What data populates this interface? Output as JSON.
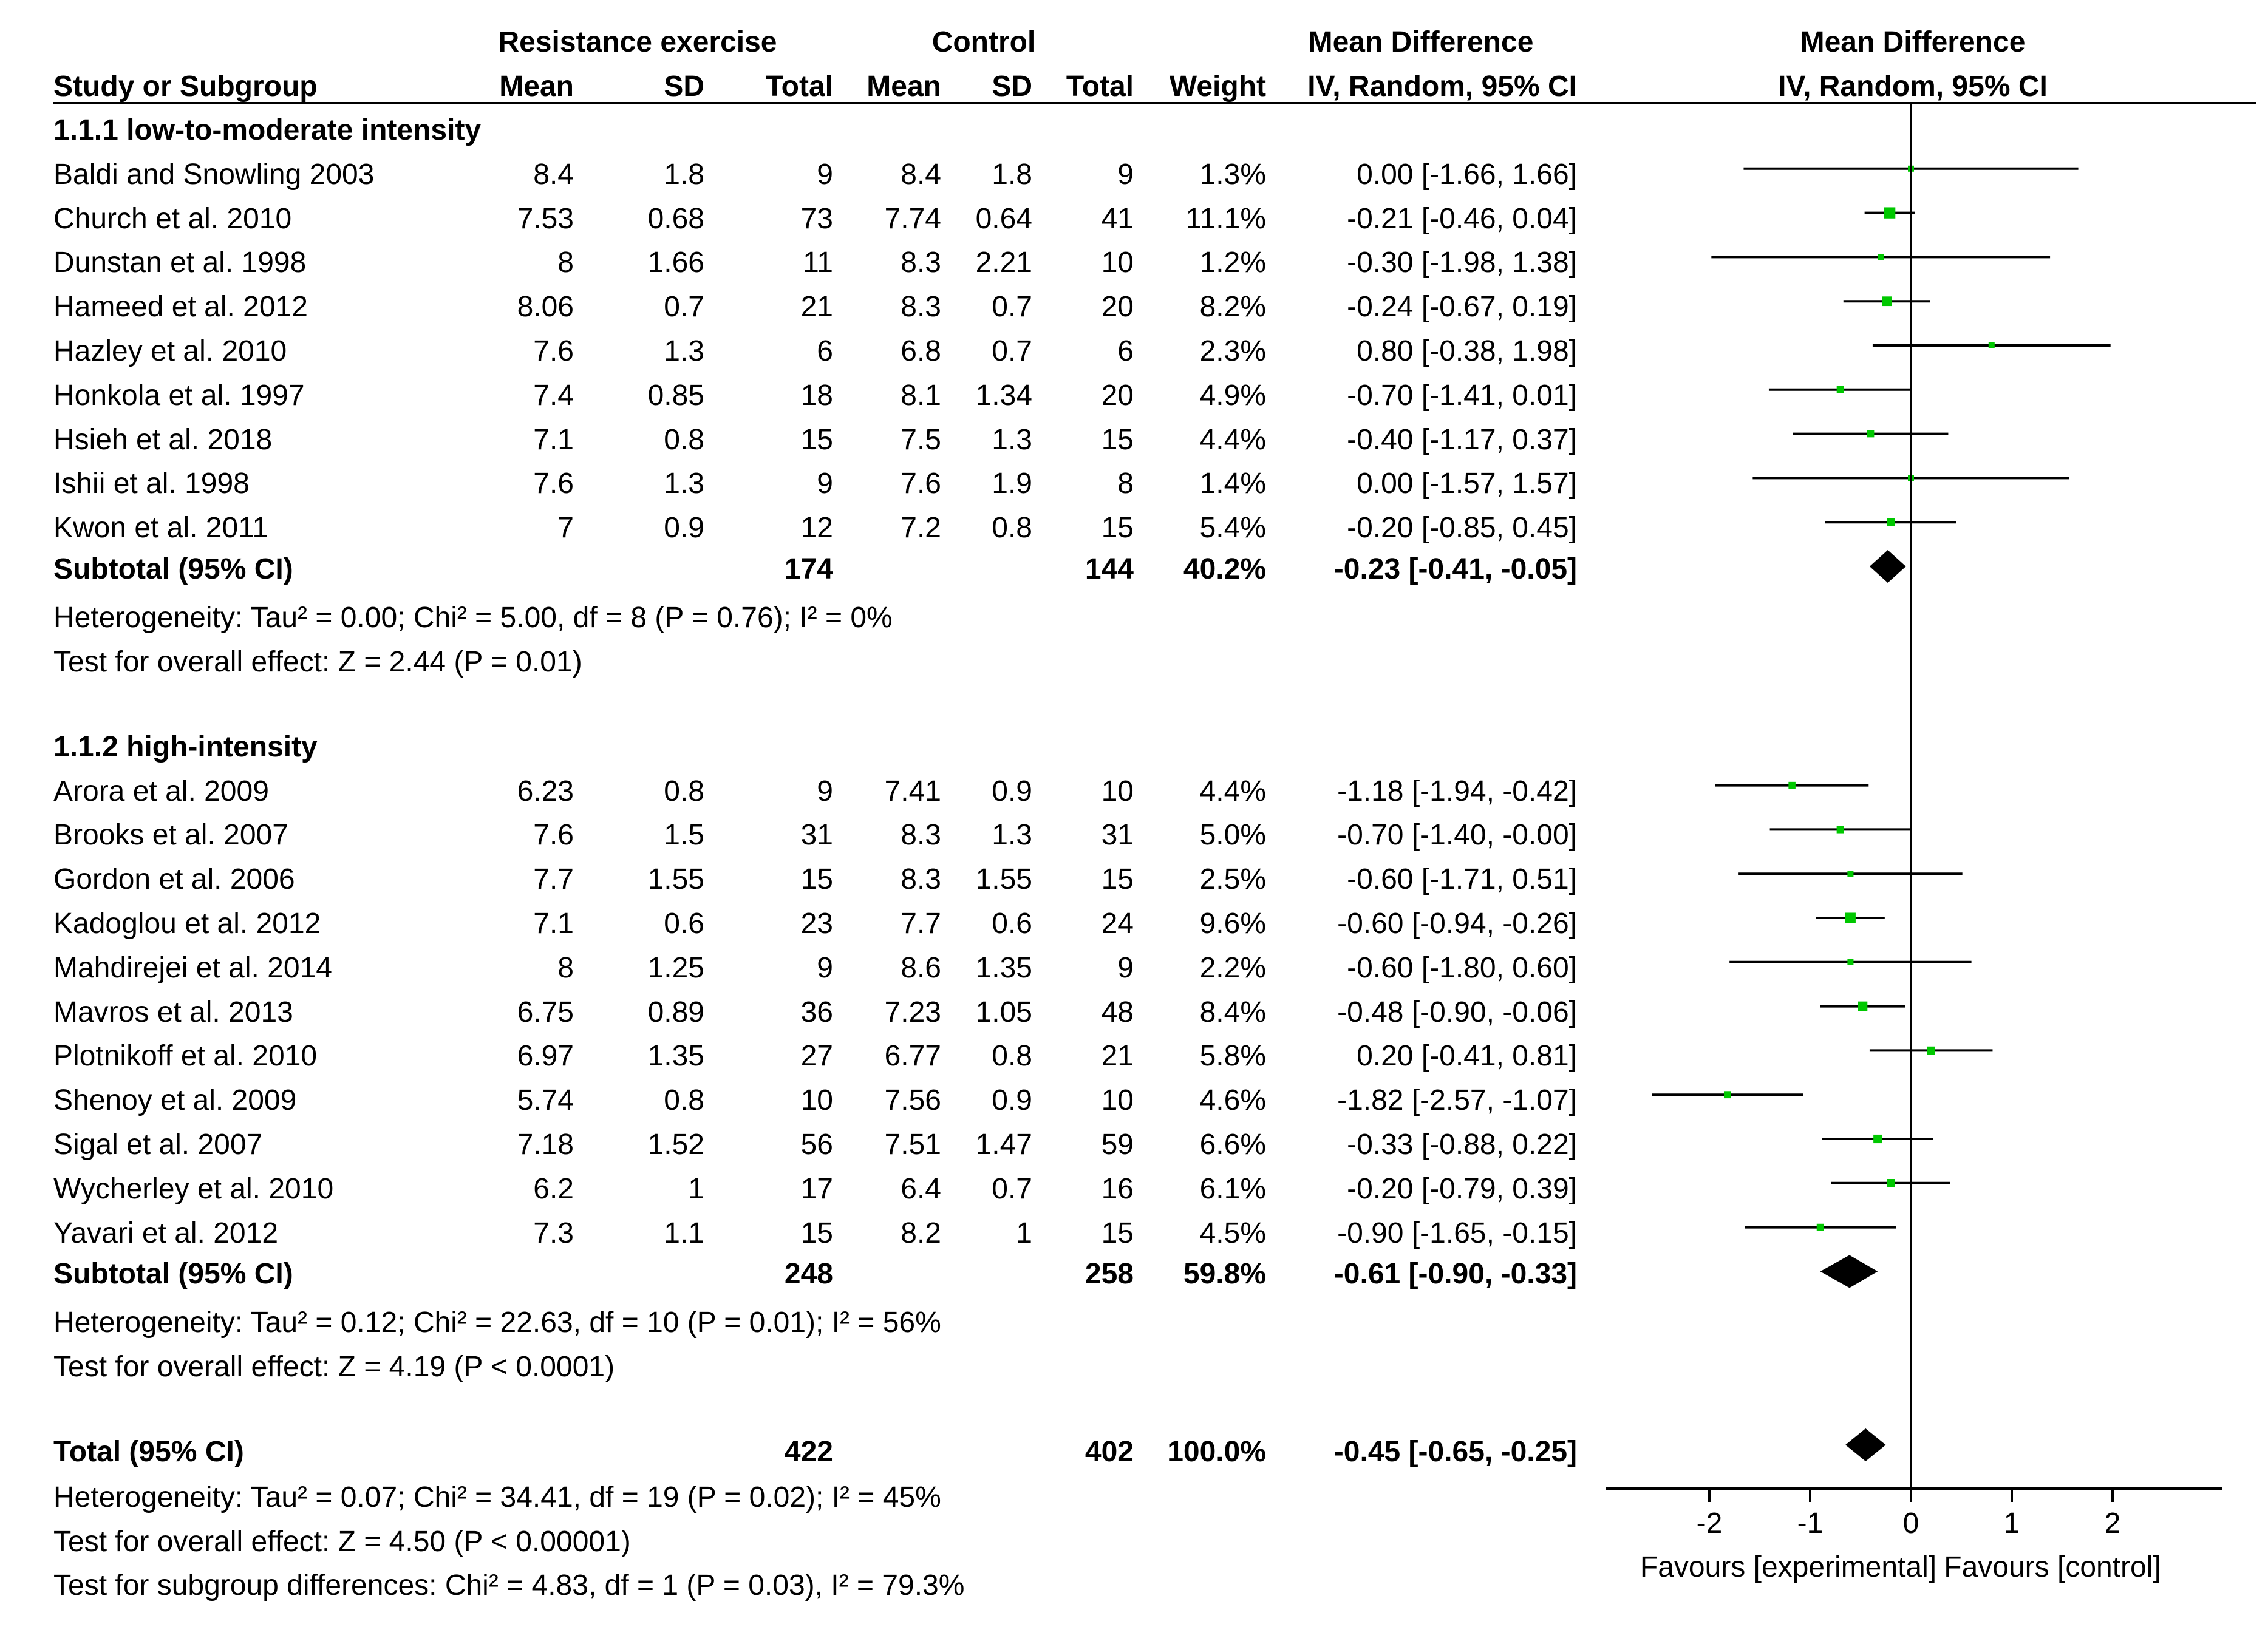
{
  "header": {
    "group_exp": "Resistance exercise",
    "group_ctrl": "Control",
    "md_title_1": "Mean Difference",
    "md_title_2": "Mean Difference",
    "study_col": "Study or Subgroup",
    "mean": "Mean",
    "sd": "SD",
    "total": "Total",
    "weight": "Weight",
    "ci_col": "IV, Random, 95% CI",
    "plot_sub": "IV, Random, 95% CI"
  },
  "colors": {
    "marker": "#00c800",
    "line": "#000000",
    "text": "#000000"
  },
  "groups": [
    {
      "title": "1.1.1 low-to-moderate intensity",
      "studies": [
        {
          "name": "Baldi and Snowling 2003",
          "e_mean": "8.4",
          "e_sd": "1.8",
          "e_total": "9",
          "c_mean": "8.4",
          "c_sd": "1.8",
          "c_total": "9",
          "weight": "1.3%",
          "ci": "0.00 [-1.66, 1.66]",
          "md": 0.0,
          "lo": -1.66,
          "hi": 1.66
        },
        {
          "name": "Church et al. 2010",
          "e_mean": "7.53",
          "e_sd": "0.68",
          "e_total": "73",
          "c_mean": "7.74",
          "c_sd": "0.64",
          "c_total": "41",
          "weight": "11.1%",
          "ci": "-0.21 [-0.46, 0.04]",
          "md": -0.21,
          "lo": -0.46,
          "hi": 0.04
        },
        {
          "name": "Dunstan et al. 1998",
          "e_mean": "8",
          "e_sd": "1.66",
          "e_total": "11",
          "c_mean": "8.3",
          "c_sd": "2.21",
          "c_total": "10",
          "weight": "1.2%",
          "ci": "-0.30 [-1.98, 1.38]",
          "md": -0.3,
          "lo": -1.98,
          "hi": 1.38
        },
        {
          "name": "Hameed et al. 2012",
          "e_mean": "8.06",
          "e_sd": "0.7",
          "e_total": "21",
          "c_mean": "8.3",
          "c_sd": "0.7",
          "c_total": "20",
          "weight": "8.2%",
          "ci": "-0.24 [-0.67, 0.19]",
          "md": -0.24,
          "lo": -0.67,
          "hi": 0.19
        },
        {
          "name": "Hazley et al. 2010",
          "e_mean": "7.6",
          "e_sd": "1.3",
          "e_total": "6",
          "c_mean": "6.8",
          "c_sd": "0.7",
          "c_total": "6",
          "weight": "2.3%",
          "ci": "0.80 [-0.38, 1.98]",
          "md": 0.8,
          "lo": -0.38,
          "hi": 1.98
        },
        {
          "name": "Honkola et al. 1997",
          "e_mean": "7.4",
          "e_sd": "0.85",
          "e_total": "18",
          "c_mean": "8.1",
          "c_sd": "1.34",
          "c_total": "20",
          "weight": "4.9%",
          "ci": "-0.70 [-1.41, 0.01]",
          "md": -0.7,
          "lo": -1.41,
          "hi": 0.01
        },
        {
          "name": "Hsieh et al. 2018",
          "e_mean": "7.1",
          "e_sd": "0.8",
          "e_total": "15",
          "c_mean": "7.5",
          "c_sd": "1.3",
          "c_total": "15",
          "weight": "4.4%",
          "ci": "-0.40 [-1.17, 0.37]",
          "md": -0.4,
          "lo": -1.17,
          "hi": 0.37
        },
        {
          "name": "Ishii et al. 1998",
          "e_mean": "7.6",
          "e_sd": "1.3",
          "e_total": "9",
          "c_mean": "7.6",
          "c_sd": "1.9",
          "c_total": "8",
          "weight": "1.4%",
          "ci": "0.00 [-1.57, 1.57]",
          "md": 0.0,
          "lo": -1.57,
          "hi": 1.57
        },
        {
          "name": "Kwon et al. 2011",
          "e_mean": "7",
          "e_sd": "0.9",
          "e_total": "12",
          "c_mean": "7.2",
          "c_sd": "0.8",
          "c_total": "15",
          "weight": "5.4%",
          "ci": "-0.20 [-0.85, 0.45]",
          "md": -0.2,
          "lo": -0.85,
          "hi": 0.45
        }
      ],
      "subtotal": {
        "label": "Subtotal (95% CI)",
        "e_total": "174",
        "c_total": "144",
        "weight": "40.2%",
        "ci": "-0.23 [-0.41, -0.05]",
        "md": -0.23,
        "lo": -0.41,
        "hi": -0.05
      },
      "heterogeneity": "Heterogeneity: Tau² = 0.00; Chi² = 5.00, df = 8 (P = 0.76); I² = 0%",
      "overall": "Test for overall effect: Z = 2.44 (P = 0.01)"
    },
    {
      "title": "1.1.2 high-intensity",
      "studies": [
        {
          "name": "Arora et al. 2009",
          "e_mean": "6.23",
          "e_sd": "0.8",
          "e_total": "9",
          "c_mean": "7.41",
          "c_sd": "0.9",
          "c_total": "10",
          "weight": "4.4%",
          "ci": "-1.18 [-1.94, -0.42]",
          "md": -1.18,
          "lo": -1.94,
          "hi": -0.42
        },
        {
          "name": "Brooks et al. 2007",
          "e_mean": "7.6",
          "e_sd": "1.5",
          "e_total": "31",
          "c_mean": "8.3",
          "c_sd": "1.3",
          "c_total": "31",
          "weight": "5.0%",
          "ci": "-0.70 [-1.40, -0.00]",
          "md": -0.7,
          "lo": -1.4,
          "hi": 0.0
        },
        {
          "name": "Gordon et al. 2006",
          "e_mean": "7.7",
          "e_sd": "1.55",
          "e_total": "15",
          "c_mean": "8.3",
          "c_sd": "1.55",
          "c_total": "15",
          "weight": "2.5%",
          "ci": "-0.60 [-1.71, 0.51]",
          "md": -0.6,
          "lo": -1.71,
          "hi": 0.51
        },
        {
          "name": "Kadoglou et al. 2012",
          "e_mean": "7.1",
          "e_sd": "0.6",
          "e_total": "23",
          "c_mean": "7.7",
          "c_sd": "0.6",
          "c_total": "24",
          "weight": "9.6%",
          "ci": "-0.60 [-0.94, -0.26]",
          "md": -0.6,
          "lo": -0.94,
          "hi": -0.26
        },
        {
          "name": "Mahdirejei et al. 2014",
          "e_mean": "8",
          "e_sd": "1.25",
          "e_total": "9",
          "c_mean": "8.6",
          "c_sd": "1.35",
          "c_total": "9",
          "weight": "2.2%",
          "ci": "-0.60 [-1.80, 0.60]",
          "md": -0.6,
          "lo": -1.8,
          "hi": 0.6
        },
        {
          "name": "Mavros et al. 2013",
          "e_mean": "6.75",
          "e_sd": "0.89",
          "e_total": "36",
          "c_mean": "7.23",
          "c_sd": "1.05",
          "c_total": "48",
          "weight": "8.4%",
          "ci": "-0.48 [-0.90, -0.06]",
          "md": -0.48,
          "lo": -0.9,
          "hi": -0.06
        },
        {
          "name": "Plotnikoff et al. 2010",
          "e_mean": "6.97",
          "e_sd": "1.35",
          "e_total": "27",
          "c_mean": "6.77",
          "c_sd": "0.8",
          "c_total": "21",
          "weight": "5.8%",
          "ci": "0.20 [-0.41, 0.81]",
          "md": 0.2,
          "lo": -0.41,
          "hi": 0.81
        },
        {
          "name": "Shenoy et al. 2009",
          "e_mean": "5.74",
          "e_sd": "0.8",
          "e_total": "10",
          "c_mean": "7.56",
          "c_sd": "0.9",
          "c_total": "10",
          "weight": "4.6%",
          "ci": "-1.82 [-2.57, -1.07]",
          "md": -1.82,
          "lo": -2.57,
          "hi": -1.07
        },
        {
          "name": "Sigal et al. 2007",
          "e_mean": "7.18",
          "e_sd": "1.52",
          "e_total": "56",
          "c_mean": "7.51",
          "c_sd": "1.47",
          "c_total": "59",
          "weight": "6.6%",
          "ci": "-0.33 [-0.88, 0.22]",
          "md": -0.33,
          "lo": -0.88,
          "hi": 0.22
        },
        {
          "name": "Wycherley et al. 2010",
          "e_mean": "6.2",
          "e_sd": "1",
          "e_total": "17",
          "c_mean": "6.4",
          "c_sd": "0.7",
          "c_total": "16",
          "weight": "6.1%",
          "ci": "-0.20 [-0.79, 0.39]",
          "md": -0.2,
          "lo": -0.79,
          "hi": 0.39
        },
        {
          "name": "Yavari et al. 2012",
          "e_mean": "7.3",
          "e_sd": "1.1",
          "e_total": "15",
          "c_mean": "8.2",
          "c_sd": "1",
          "c_total": "15",
          "weight": "4.5%",
          "ci": "-0.90 [-1.65, -0.15]",
          "md": -0.9,
          "lo": -1.65,
          "hi": -0.15
        }
      ],
      "subtotal": {
        "label": "Subtotal (95% CI)",
        "e_total": "248",
        "c_total": "258",
        "weight": "59.8%",
        "ci": "-0.61 [-0.90, -0.33]",
        "md": -0.61,
        "lo": -0.9,
        "hi": -0.33
      },
      "heterogeneity": "Heterogeneity: Tau² = 0.12; Chi² = 22.63, df = 10 (P = 0.01); I² = 56%",
      "overall": "Test for overall effect: Z = 4.19 (P < 0.0001)"
    }
  ],
  "total": {
    "label": "Total (95% CI)",
    "e_total": "422",
    "c_total": "402",
    "weight": "100.0%",
    "ci": "-0.45 [-0.65, -0.25]",
    "md": -0.45,
    "lo": -0.65,
    "hi": -0.25,
    "heterogeneity": "Heterogeneity: Tau² = 0.07; Chi² = 34.41, df = 19 (P = 0.02); I² = 45%",
    "overall": "Test for overall effect: Z = 4.50 (P < 0.00001)",
    "subgroup": "Test for subgroup differences: Chi² = 4.83, df = 1 (P = 0.03), I² = 79.3%"
  },
  "chart_data": {
    "type": "forest",
    "xlim": [
      -3,
      3
    ],
    "ticks": [
      -2,
      -1,
      0,
      1,
      2
    ],
    "tick_labels": [
      "-2",
      "-1",
      "0",
      "1",
      "2"
    ],
    "favours_left": "Favours [experimental]",
    "favours_right": "Favours [control]"
  }
}
